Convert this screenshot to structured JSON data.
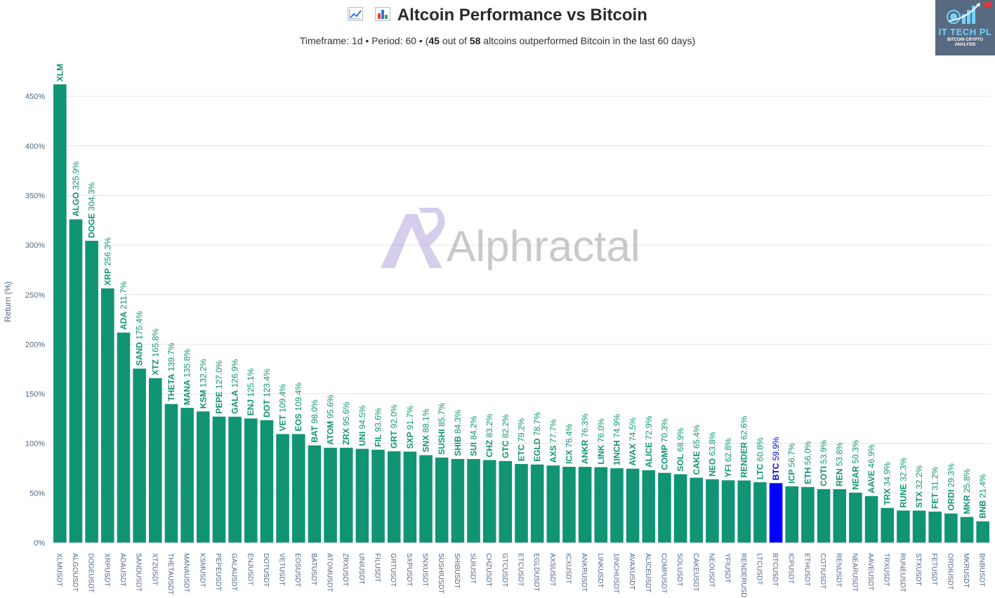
{
  "title": "Altcoin Performance vs Bitcoin",
  "subtitle": {
    "prefix": "Timeframe: 1d  •  Period: 60  •  (",
    "outperformed": "45",
    "middle": " out of ",
    "total": "58",
    "suffix": " altcoins outperformed Bitcoin in the last 60 days)"
  },
  "watermark": "Alphractal",
  "logo": {
    "line1": "IT TECH PL",
    "line2": "BITCOIN CRYPTO",
    "line3": "ANALYSIS"
  },
  "colors": {
    "bar": "#109473",
    "btc": "#0000ff",
    "grid": "#e6e6e6"
  },
  "chart_data": {
    "type": "bar",
    "ylabel": "Return (%)",
    "ylim": [
      0,
      470
    ],
    "yticks": [
      0,
      50,
      100,
      150,
      200,
      250,
      300,
      350,
      400,
      450
    ],
    "ytick_labels": [
      "0%",
      "50%",
      "100%",
      "150%",
      "200%",
      "250%",
      "300%",
      "350%",
      "400%",
      "450%"
    ],
    "categories": [
      "XLMUSDT",
      "ALGOUSDT",
      "DOGEUSDT",
      "XRPUSDT",
      "ADAUSDT",
      "SANDUSDT",
      "XTZUSDT",
      "THETAUSDT",
      "MANAUSDT",
      "KSMUSDT",
      "PEPEUSDT",
      "GALAUSDT",
      "ENJUSDT",
      "DOTUSDT",
      "VETUSDT",
      "EOSUSDT",
      "BATUSDT",
      "ATOMUSDT",
      "ZRXUSDT",
      "UNIUSDT",
      "FILUSDT",
      "GRTUSDT",
      "SXPUSDT",
      "SNXUSDT",
      "SUSHIUSDT",
      "SHIBUSDT",
      "SUIUSDT",
      "CHZUSDT",
      "GTCUSDT",
      "ETCUSDT",
      "EGLDUSDT",
      "AXSUSDT",
      "ICXUSDT",
      "ANKRUSDT",
      "LINKUSDT",
      "1INCHUSDT",
      "AVAXUSDT",
      "ALICEUSDT",
      "COMPUSDT",
      "SOLUSDT",
      "CAKEUSDT",
      "NEOUSDT",
      "YFIUSDT",
      "RENDERUSDT",
      "LTCUSDT",
      "BTCUSDT",
      "ICPUSDT",
      "ETHUSDT",
      "COTIUSDT",
      "RENUSDT",
      "NEARUSDT",
      "AAVEUSDT",
      "TRXUSDT",
      "RUNEUSDT",
      "STXUSDT",
      "FETUSDT",
      "ORDIUSDT",
      "MKRUSDT",
      "BNBUSDT"
    ],
    "symbols": [
      "XLM",
      "ALGO",
      "DOGE",
      "XRP",
      "ADA",
      "SAND",
      "XTZ",
      "THETA",
      "MANA",
      "KSM",
      "PEPE",
      "GALA",
      "ENJ",
      "DOT",
      "VET",
      "EOS",
      "BAT",
      "ATOM",
      "ZRX",
      "UNI",
      "FIL",
      "GRT",
      "SXP",
      "SNX",
      "SUSHI",
      "SHIB",
      "SUI",
      "CHZ",
      "GTC",
      "ETC",
      "EGLD",
      "AXS",
      "ICX",
      "ANKR",
      "LINK",
      "1INCH",
      "AVAX",
      "ALICE",
      "COMP",
      "SOL",
      "CAKE",
      "NEO",
      "YFI",
      "RENDER",
      "LTC",
      "BTC",
      "ICP",
      "ETH",
      "COTI",
      "REN",
      "NEAR",
      "AAVE",
      "TRX",
      "RUNE",
      "STX",
      "FET",
      "ORDI",
      "MKR",
      "BNB"
    ],
    "values": [
      462.0,
      325.9,
      304.3,
      256.3,
      211.7,
      175.4,
      165.8,
      139.7,
      135.8,
      132.2,
      127.0,
      126.9,
      125.1,
      123.4,
      109.4,
      109.4,
      98.0,
      95.6,
      95.6,
      94.5,
      93.6,
      92.0,
      91.7,
      88.1,
      85.7,
      84.3,
      84.2,
      83.2,
      82.2,
      79.2,
      78.7,
      77.7,
      76.4,
      76.3,
      76.0,
      74.9,
      74.5,
      72.9,
      70.3,
      68.9,
      65.4,
      63.8,
      62.8,
      62.6,
      60.8,
      59.9,
      56.7,
      56.0,
      53.9,
      53.8,
      50.3,
      46.9,
      34.9,
      32.3,
      32.2,
      31.2,
      29.3,
      25.8,
      21.4
    ],
    "value_labels": [
      "",
      "325.9%",
      "304.3%",
      "256.3%",
      "211.7%",
      "175.4%",
      "165.8%",
      "139.7%",
      "135.8%",
      "132.2%",
      "127.0%",
      "126.9%",
      "125.1%",
      "123.4%",
      "109.4%",
      "109.4%",
      "98.0%",
      "95.6%",
      "95.6%",
      "94.5%",
      "93.6%",
      "92.0%",
      "91.7%",
      "88.1%",
      "85.7%",
      "84.3%",
      "84.2%",
      "83.2%",
      "82.2%",
      "79.2%",
      "78.7%",
      "77.7%",
      "76.4%",
      "76.3%",
      "76.0%",
      "74.9%",
      "74.5%",
      "72.9%",
      "70.3%",
      "68.9%",
      "65.4%",
      "63.8%",
      "62.8%",
      "62.6%",
      "60.8%",
      "59.9%",
      "56.7%",
      "56.0%",
      "53.9%",
      "53.8%",
      "50.3%",
      "46.9%",
      "34.9%",
      "32.3%",
      "32.2%",
      "31.2%",
      "29.3%",
      "25.8%",
      "21.4%"
    ],
    "highlight": "BTCUSDT",
    "grid": true
  }
}
